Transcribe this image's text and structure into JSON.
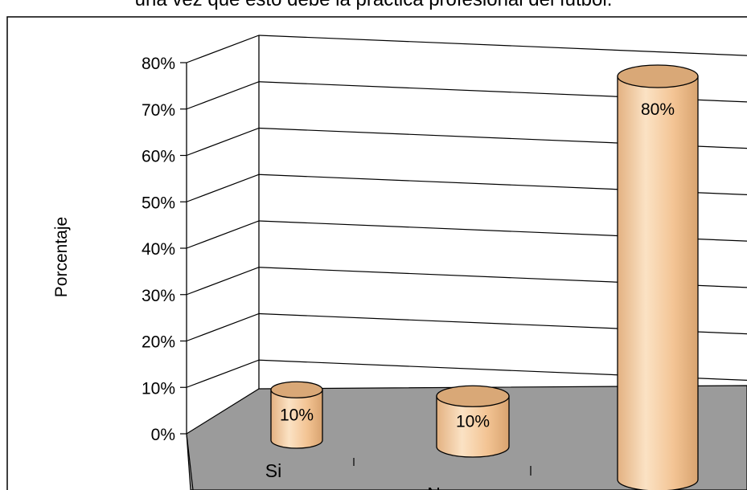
{
  "title": "una vez que esto debe la práctica profesional del futbol.",
  "chart_data": {
    "type": "bar",
    "style": "3d-cylinder",
    "categories": [
      "Si",
      "No",
      ""
    ],
    "values": [
      10,
      10,
      80
    ],
    "data_labels": [
      "10%",
      "10%",
      "80%"
    ],
    "ylabel": "Porcentaje",
    "xlabel": "",
    "ylim": [
      0,
      80
    ],
    "yticks": [
      "0%",
      "10%",
      "20%",
      "30%",
      "40%",
      "50%",
      "60%",
      "70%",
      "80%"
    ],
    "grid": true,
    "legend": "none",
    "colors": {
      "bar_body": "#f5c9a0",
      "bar_top": "#d9a877",
      "bar_edge": "#000000",
      "floor": "#9b9b9b",
      "gridline": "#000000"
    }
  }
}
